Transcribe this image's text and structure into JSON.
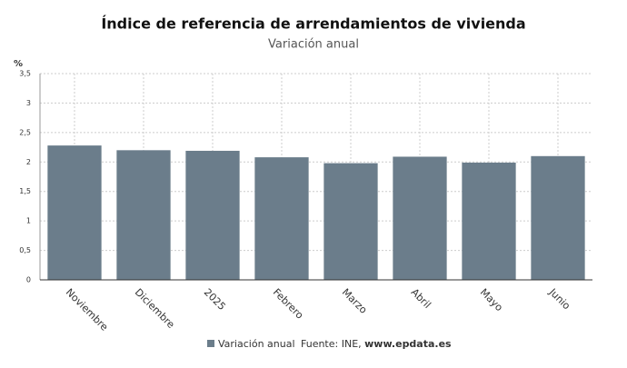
{
  "chart_data": {
    "type": "bar",
    "title": "Índice de referencia de arrendamientos de vivienda",
    "subtitle": "Variación anual",
    "y_unit": "%",
    "categories": [
      "Noviembre",
      "Diciembre",
      "2025",
      "Febrero",
      "Marzo",
      "Abril",
      "Mayo",
      "Junio"
    ],
    "series": [
      {
        "name": "Variación anual",
        "color": "#6b7d8b",
        "values": [
          2.28,
          2.2,
          2.19,
          2.08,
          1.98,
          2.09,
          1.99,
          2.1
        ]
      }
    ],
    "ylim": [
      0,
      3.5
    ],
    "yticks": [
      0,
      {
        "value": 0.5,
        "label": "0,5"
      },
      1,
      {
        "value": 1.5,
        "label": "1,5"
      },
      2,
      {
        "value": 2.5,
        "label": "2,5"
      },
      3,
      {
        "value": 3.5,
        "label": "3,5"
      }
    ],
    "grid": true,
    "source": "Fuente: INE,",
    "source_link": "www.epdata.es"
  }
}
